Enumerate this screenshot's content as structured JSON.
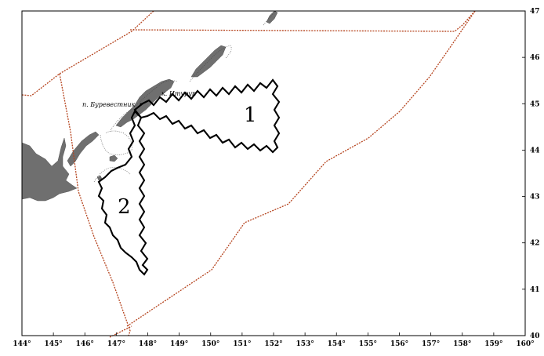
{
  "map": {
    "x_ticks": [
      {
        "value": 144,
        "label": "144°"
      },
      {
        "value": 145,
        "label": "145°"
      },
      {
        "value": 146,
        "label": "146°"
      },
      {
        "value": 147,
        "label": "147°"
      },
      {
        "value": 148,
        "label": "148°"
      },
      {
        "value": 149,
        "label": "149°"
      },
      {
        "value": 150,
        "label": "150°"
      },
      {
        "value": 151,
        "label": "151°"
      },
      {
        "value": 152,
        "label": "152°"
      },
      {
        "value": 153,
        "label": "153°"
      },
      {
        "value": 154,
        "label": "154°"
      },
      {
        "value": 155,
        "label": "155°"
      },
      {
        "value": 156,
        "label": "156°"
      },
      {
        "value": 157,
        "label": "157°"
      },
      {
        "value": 158,
        "label": "158°"
      },
      {
        "value": 159,
        "label": "159°"
      },
      {
        "value": 160,
        "label": "160°"
      }
    ],
    "y_ticks": [
      {
        "value": 40,
        "label": "40"
      },
      {
        "value": 41,
        "label": "41"
      },
      {
        "value": 42,
        "label": "42"
      },
      {
        "value": 43,
        "label": "43"
      },
      {
        "value": 44,
        "label": "44"
      },
      {
        "value": 45,
        "label": "45"
      },
      {
        "value": 46,
        "label": "46"
      },
      {
        "value": 47,
        "label": "47"
      }
    ],
    "x_range": [
      144,
      160
    ],
    "y_range": [
      40,
      47
    ],
    "zone_labels": [
      {
        "id": "zone-1",
        "text": "1"
      },
      {
        "id": "zone-2",
        "text": "2"
      }
    ],
    "places": [
      {
        "id": "cape-iturup",
        "text": "к. Итуруп"
      },
      {
        "id": "burevestnik",
        "text": "п. Буревестник"
      }
    ],
    "colors": {
      "boundary": "#b5431d",
      "land": "#6f6f6f",
      "zone_outline": "#000000"
    }
  }
}
